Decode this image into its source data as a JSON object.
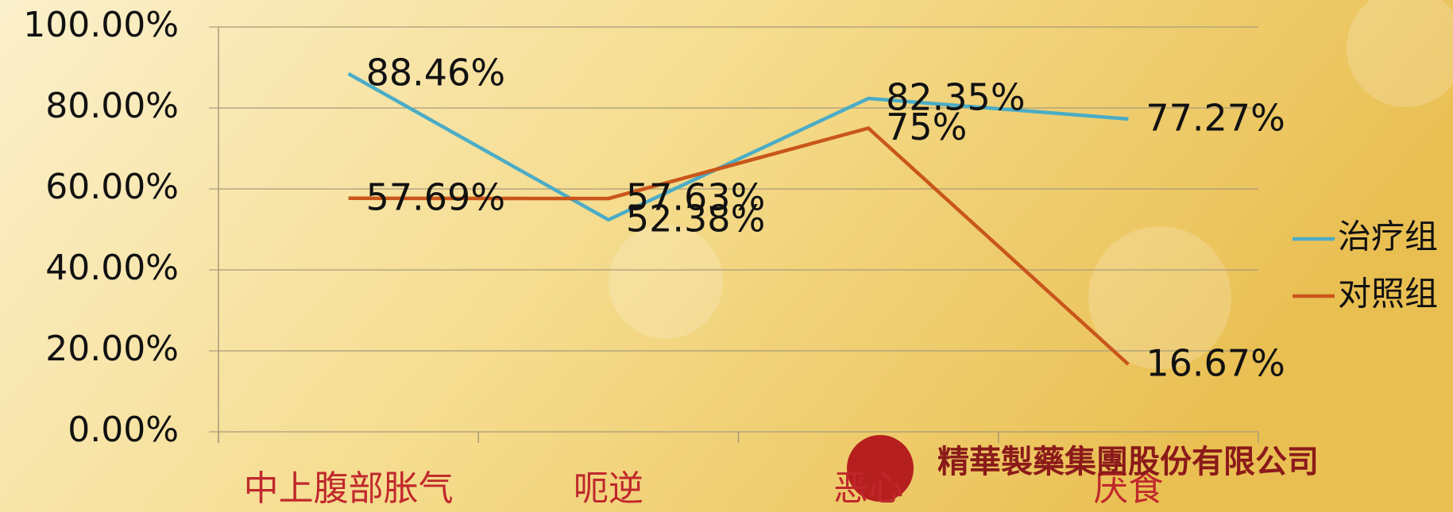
{
  "chart_data": {
    "type": "line",
    "categories": [
      "中上腹部胀气",
      "呃逆",
      "恶心",
      "厌食"
    ],
    "series": [
      {
        "name": "治疗组",
        "color": "#4bacc6",
        "values": [
          88.46,
          52.38,
          82.35,
          77.27
        ],
        "value_labels": [
          "88.46%",
          "52.38%",
          "82.35%",
          "77.27%"
        ]
      },
      {
        "name": "对照组",
        "color": "#c9561a",
        "values": [
          57.69,
          57.63,
          75,
          16.67
        ],
        "value_labels": [
          "57.69%",
          "57.63%",
          "75%",
          "16.67%"
        ]
      }
    ],
    "ylim": [
      0,
      100
    ],
    "yticks": [
      {
        "value": 0,
        "label": "0.00%"
      },
      {
        "value": 20,
        "label": "20.00%"
      },
      {
        "value": 40,
        "label": "40.00%"
      },
      {
        "value": 60,
        "label": "60.00%"
      },
      {
        "value": 80,
        "label": "80.00%"
      },
      {
        "value": 100,
        "label": "100.00%"
      }
    ],
    "grid": true,
    "legend": "right",
    "annotation": "精華製藥集團股份有限公司"
  }
}
